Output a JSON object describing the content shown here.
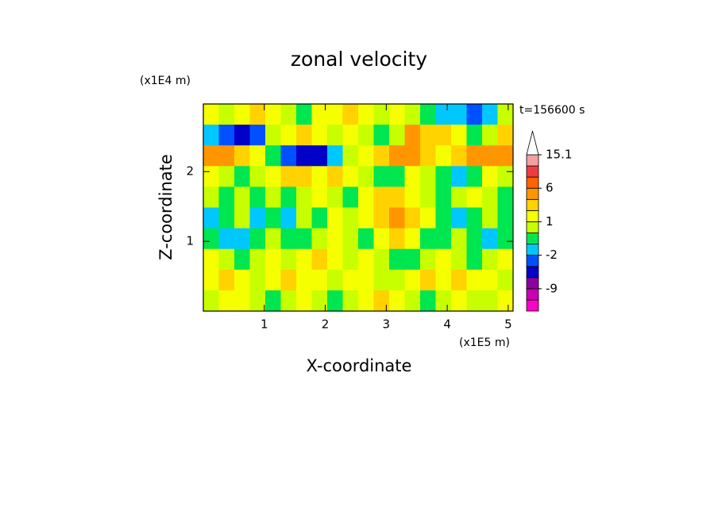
{
  "chart_data": {
    "type": "contour",
    "title": "zonal velocity",
    "x_label": "X-coordinate",
    "y_label": "Z-coordinate",
    "x_unit": "(x1E5 m)",
    "y_unit": "(x1E4 m)",
    "time_label": "t=156600 s",
    "xlim": [
      0,
      5.08
    ],
    "ylim": [
      0,
      2.97
    ],
    "xticks": [
      1,
      2,
      3,
      4,
      5
    ],
    "yticks": [
      1,
      2
    ],
    "levels": [
      -12,
      -9,
      -6,
      -3,
      -2,
      -1,
      0,
      1,
      2,
      3,
      6,
      9,
      12,
      15.1
    ],
    "level_colors": [
      "#ff00c8",
      "#c800b4",
      "#8c00a0",
      "#0000c8",
      "#0050ff",
      "#00c8ff",
      "#00e650",
      "#c8ff00",
      "#f5ff00",
      "#ffd200",
      "#ff9600",
      "#ff6400",
      "#f03c3c",
      "#f5a0a0",
      "#ffffff"
    ],
    "colorbar_ticks": [
      -9,
      -2,
      1,
      6,
      15.1
    ],
    "field": [
      [
        1.5,
        0.5,
        1.5,
        2.5,
        1.5,
        0.5,
        -0.5,
        1.5,
        1.5,
        2.5,
        1.5,
        0.5,
        1.5,
        0.5,
        -0.5,
        -1.5,
        -1.5,
        -2.5,
        -1.5,
        0.5
      ],
      [
        -1.5,
        -2.5,
        -4,
        -2.5,
        0.5,
        1.5,
        2.5,
        1.5,
        0.5,
        1.5,
        0.5,
        -0.5,
        0.5,
        4,
        2.5,
        2.5,
        1.5,
        -0.5,
        0.5,
        2.5
      ],
      [
        4,
        4,
        2.5,
        1.5,
        -0.5,
        -2.5,
        -4,
        -4,
        -1.5,
        0.5,
        1.5,
        2.5,
        4,
        4,
        2.5,
        1.5,
        2.5,
        4,
        4,
        4
      ],
      [
        1.5,
        0.5,
        -0.5,
        0.5,
        1.5,
        2.5,
        2.5,
        1.5,
        2.5,
        1.5,
        0.5,
        -0.5,
        -0.5,
        1.5,
        0.5,
        -0.5,
        -1.5,
        -0.5,
        1.5,
        0.5
      ],
      [
        0.5,
        -0.5,
        0.5,
        -0.5,
        0.5,
        -0.5,
        0.5,
        1.5,
        0.5,
        -0.5,
        1.5,
        2.5,
        2.5,
        1.5,
        0.5,
        -0.5,
        0.5,
        1.5,
        0.5,
        -0.5
      ],
      [
        -1.5,
        -0.5,
        0.5,
        -1.5,
        -0.5,
        -1.5,
        0.5,
        -0.5,
        1.5,
        0.5,
        1.5,
        2.5,
        4,
        2.5,
        1.5,
        -0.5,
        -1.5,
        -0.5,
        0.5,
        -0.5
      ],
      [
        -0.5,
        -1.5,
        -1.5,
        -0.5,
        0.5,
        -0.5,
        -0.5,
        0.5,
        1.5,
        0.5,
        -0.5,
        1.5,
        2.5,
        1.5,
        -0.5,
        -0.5,
        0.5,
        -0.5,
        -1.5,
        -0.5
      ],
      [
        1.5,
        0.5,
        -0.5,
        0.5,
        1.5,
        0.5,
        1.5,
        2.5,
        1.5,
        0.5,
        1.5,
        0.5,
        -0.5,
        -0.5,
        0.5,
        1.5,
        0.5,
        -0.5,
        0.5,
        1.5
      ],
      [
        1.5,
        2.5,
        1.5,
        0.5,
        1.5,
        2.5,
        1.5,
        1.5,
        0.5,
        1.5,
        1.5,
        0.5,
        0.5,
        1.5,
        2.5,
        1.5,
        2.5,
        1.5,
        1.5,
        0.5
      ],
      [
        0.5,
        1.5,
        1.5,
        0.5,
        -0.5,
        0.5,
        1.5,
        0.5,
        -0.5,
        0.5,
        1.5,
        2.5,
        1.5,
        0.5,
        -0.5,
        0.5,
        1.5,
        0.5,
        0.5,
        1.5
      ]
    ]
  }
}
